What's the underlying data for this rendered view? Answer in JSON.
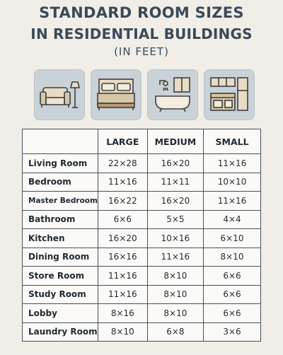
{
  "header": {
    "line1": "STANDARD ROOM SIZES",
    "line2": "IN RESIDENTIAL BUILDINGS",
    "line3": "(IN FEET)"
  },
  "icons": [
    "living-room-icon",
    "bedroom-icon",
    "bathroom-icon",
    "kitchen-icon"
  ],
  "colors": {
    "title": "#3a4a58",
    "tile": "#c9d2d6",
    "background": "#f1eee8",
    "border": "#46505a"
  },
  "table": {
    "columns": [
      "",
      "LARGE",
      "MEDIUM",
      "SMALL"
    ],
    "rows": [
      {
        "room": "Living Room",
        "large": "22×28",
        "medium": "16×20",
        "small": "11×16"
      },
      {
        "room": "Bedroom",
        "large": "11×16",
        "medium": "11×11",
        "small": "10×10"
      },
      {
        "room": "Master Bedroom",
        "large": "16×22",
        "medium": "16×20",
        "small": "11×16"
      },
      {
        "room": "Bathroom",
        "large": "6×6",
        "medium": "5×5",
        "small": "4×4"
      },
      {
        "room": "Kitchen",
        "large": "16×20",
        "medium": "10×16",
        "small": "6×10"
      },
      {
        "room": "Dining Room",
        "large": "16×16",
        "medium": "11×16",
        "small": "8×10"
      },
      {
        "room": "Store Room",
        "large": "11×16",
        "medium": "8×10",
        "small": "6×6"
      },
      {
        "room": "Study Room",
        "large": "11×16",
        "medium": "8×10",
        "small": "6×6"
      },
      {
        "room": "Lobby",
        "large": "8×16",
        "medium": "8×10",
        "small": "6×6"
      },
      {
        "room": "Laundry Room",
        "large": "8×10",
        "medium": "6×8",
        "small": "3×6"
      }
    ]
  }
}
